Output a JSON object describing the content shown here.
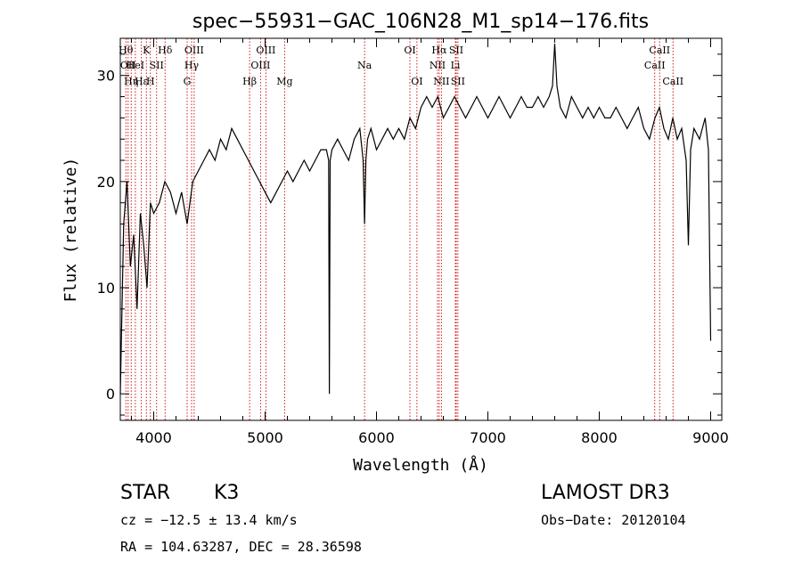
{
  "chart_data": {
    "type": "line",
    "title": "spec−55931−GAC_106N28_M1_sp14−176.fits",
    "xlabel": "Wavelength (Å)",
    "ylabel": "Flux (relative)",
    "xlim": [
      3700,
      9100
    ],
    "ylim": [
      -2.5,
      33.5
    ],
    "xticks": [
      4000,
      5000,
      6000,
      7000,
      8000,
      9000
    ],
    "yticks": [
      0,
      10,
      20,
      30
    ],
    "series": [
      {
        "name": "flux",
        "x": [
          3700,
          3730,
          3760,
          3790,
          3820,
          3850,
          3880,
          3910,
          3940,
          3970,
          4000,
          4050,
          4100,
          4150,
          4200,
          4250,
          4300,
          4350,
          4400,
          4450,
          4500,
          4550,
          4600,
          4650,
          4700,
          4750,
          4800,
          4850,
          4900,
          4950,
          5000,
          5050,
          5100,
          5150,
          5200,
          5250,
          5300,
          5350,
          5400,
          5450,
          5500,
          5550,
          5570,
          5577,
          5584,
          5600,
          5650,
          5700,
          5750,
          5800,
          5850,
          5880,
          5893,
          5905,
          5920,
          5950,
          6000,
          6050,
          6100,
          6150,
          6200,
          6250,
          6300,
          6350,
          6400,
          6450,
          6500,
          6550,
          6600,
          6650,
          6700,
          6750,
          6800,
          6850,
          6900,
          6950,
          7000,
          7050,
          7100,
          7150,
          7200,
          7250,
          7300,
          7350,
          7400,
          7450,
          7500,
          7550,
          7580,
          7600,
          7620,
          7650,
          7700,
          7750,
          7800,
          7850,
          7900,
          7950,
          8000,
          8050,
          8100,
          8150,
          8200,
          8250,
          8300,
          8350,
          8400,
          8450,
          8500,
          8540,
          8580,
          8620,
          8660,
          8700,
          8740,
          8780,
          8800,
          8820,
          8850,
          8900,
          8950,
          8980,
          9000
        ],
        "y": [
          0,
          16,
          20,
          12,
          15,
          8,
          17,
          14,
          10,
          18,
          17,
          18,
          20,
          19,
          17,
          19,
          16,
          20,
          21,
          22,
          23,
          22,
          24,
          23,
          25,
          24,
          23,
          22,
          21,
          20,
          19,
          18,
          19,
          20,
          21,
          20,
          21,
          22,
          21,
          22,
          23,
          23,
          22,
          0,
          22,
          23,
          24,
          23,
          22,
          24,
          25,
          22,
          16,
          22,
          24,
          25,
          23,
          24,
          25,
          24,
          25,
          24,
          26,
          25,
          27,
          28,
          27,
          28,
          26,
          27,
          28,
          27,
          26,
          27,
          28,
          27,
          26,
          27,
          28,
          27,
          26,
          27,
          28,
          27,
          27,
          28,
          27,
          28,
          29,
          33,
          29,
          27,
          26,
          28,
          27,
          26,
          27,
          26,
          27,
          26,
          26,
          27,
          26,
          25,
          26,
          27,
          25,
          24,
          26,
          27,
          25,
          24,
          26,
          24,
          25,
          22,
          14,
          23,
          25,
          24,
          26,
          23,
          5
        ]
      }
    ],
    "lines": [
      {
        "wave": 3750,
        "label": "Hθ",
        "row": 0
      },
      {
        "wave": 3770,
        "label": "OII",
        "row": 1
      },
      {
        "wave": 3798,
        "label": "Hη",
        "row": 2
      },
      {
        "wave": 3835,
        "label": "HeI",
        "row": 1
      },
      {
        "wave": 3889,
        "label": "Hε",
        "row": 2
      },
      {
        "wave": 3934,
        "label": "K",
        "row": 0
      },
      {
        "wave": 3970,
        "label": "H",
        "row": 2
      },
      {
        "wave": 4026,
        "label": "SII",
        "row": 1
      },
      {
        "wave": 4102,
        "label": "Hδ",
        "row": 0
      },
      {
        "wave": 4300,
        "label": "G",
        "row": 2
      },
      {
        "wave": 4340,
        "label": "Hγ",
        "row": 1
      },
      {
        "wave": 4363,
        "label": "OIII",
        "row": 0
      },
      {
        "wave": 4861,
        "label": "Hβ",
        "row": 2
      },
      {
        "wave": 4959,
        "label": "OIII",
        "row": 1
      },
      {
        "wave": 5007,
        "label": "OIII",
        "row": 0
      },
      {
        "wave": 5175,
        "label": "Mg",
        "row": 2
      },
      {
        "wave": 5893,
        "label": "Na",
        "row": 1
      },
      {
        "wave": 6300,
        "label": "OI",
        "row": 0
      },
      {
        "wave": 6363,
        "label": "OI",
        "row": 2
      },
      {
        "wave": 6548,
        "label": "NII",
        "row": 1
      },
      {
        "wave": 6563,
        "label": "Hα",
        "row": 0
      },
      {
        "wave": 6583,
        "label": "NII",
        "row": 2
      },
      {
        "wave": 6708,
        "label": "Li",
        "row": 1
      },
      {
        "wave": 6716,
        "label": "SII",
        "row": 0
      },
      {
        "wave": 6731,
        "label": "SII",
        "row": 2
      },
      {
        "wave": 8498,
        "label": "CaII",
        "row": 1
      },
      {
        "wave": 8542,
        "label": "CaII",
        "row": 0
      },
      {
        "wave": 8662,
        "label": "CaII",
        "row": 2
      }
    ]
  },
  "info": {
    "class": "STAR",
    "subclass": "K3",
    "survey": "LAMOST DR3",
    "redshift": "cz = −12.5 ± 13.4 km/s",
    "obs_date": "Obs−Date: 20120104",
    "coords": "RA = 104.63287, DEC =  28.36598"
  }
}
